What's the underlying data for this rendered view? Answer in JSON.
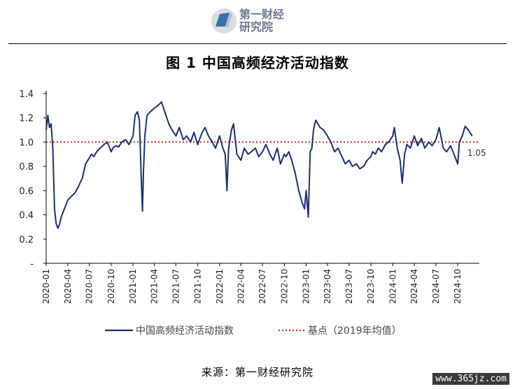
{
  "header": {
    "logo_icon": "book-icon",
    "logo_line1": "第一财经",
    "logo_line2": "研究院"
  },
  "title": "图 1  中国高频经济活动指数",
  "source": "来源：第一财经研究院",
  "watermark": "www.365jz.com",
  "chart_data": {
    "type": "line",
    "xlabel": "",
    "ylabel": "",
    "ylim": [
      0,
      1.4
    ],
    "y_ticks": [
      "-",
      "0.2",
      "0.4",
      "0.6",
      "0.8",
      "1.0",
      "1.2",
      "1.4"
    ],
    "x_ticks": [
      "2020-01",
      "2020-04",
      "2020-07",
      "2020-10",
      "2021-01",
      "2021-04",
      "2021-07",
      "2021-10",
      "2022-01",
      "2022-04",
      "2022-07",
      "2022-10",
      "2023-01",
      "2023-04",
      "2023-07",
      "2023-10",
      "2024-01",
      "2024-04",
      "2024-07",
      "2024-10"
    ],
    "x_range": [
      "2020-01-01",
      "2024-12-31"
    ],
    "last_value_label": "1.05",
    "grid": false,
    "legend_position": "bottom",
    "colors": {
      "series": "#1b2f6e",
      "baseline": "#cc3333"
    },
    "series": [
      {
        "name": "中国高频经济活动指数",
        "x": [
          "2020-01-01",
          "2020-01-08",
          "2020-01-15",
          "2020-01-22",
          "2020-01-29",
          "2020-02-05",
          "2020-02-12",
          "2020-02-19",
          "2020-02-26",
          "2020-03-04",
          "2020-03-18",
          "2020-04-01",
          "2020-04-15",
          "2020-05-01",
          "2020-05-15",
          "2020-06-01",
          "2020-06-15",
          "2020-07-01",
          "2020-07-10",
          "2020-07-20",
          "2020-08-01",
          "2020-08-15",
          "2020-09-01",
          "2020-09-15",
          "2020-10-01",
          "2020-10-08",
          "2020-10-20",
          "2020-11-01",
          "2020-11-15",
          "2020-12-01",
          "2020-12-15",
          "2021-01-01",
          "2021-01-10",
          "2021-01-20",
          "2021-01-28",
          "2021-02-05",
          "2021-02-10",
          "2021-02-14",
          "2021-02-20",
          "2021-03-01",
          "2021-03-15",
          "2021-04-01",
          "2021-04-15",
          "2021-05-01",
          "2021-05-15",
          "2021-06-01",
          "2021-06-15",
          "2021-07-01",
          "2021-07-15",
          "2021-08-01",
          "2021-08-15",
          "2021-09-01",
          "2021-09-15",
          "2021-10-01",
          "2021-10-08",
          "2021-10-20",
          "2021-11-01",
          "2021-11-15",
          "2021-12-01",
          "2021-12-15",
          "2022-01-01",
          "2022-01-15",
          "2022-01-25",
          "2022-02-01",
          "2022-02-08",
          "2022-02-20",
          "2022-03-01",
          "2022-03-15",
          "2022-04-01",
          "2022-04-15",
          "2022-05-01",
          "2022-05-15",
          "2022-06-01",
          "2022-06-15",
          "2022-07-01",
          "2022-07-15",
          "2022-08-01",
          "2022-08-15",
          "2022-09-01",
          "2022-09-15",
          "2022-10-01",
          "2022-10-08",
          "2022-10-20",
          "2022-11-01",
          "2022-11-15",
          "2022-12-01",
          "2022-12-15",
          "2022-12-25",
          "2023-01-01",
          "2023-01-10",
          "2023-01-18",
          "2023-01-25",
          "2023-02-01",
          "2023-02-10",
          "2023-02-20",
          "2023-03-01",
          "2023-03-15",
          "2023-04-01",
          "2023-04-15",
          "2023-05-01",
          "2023-05-15",
          "2023-06-01",
          "2023-06-15",
          "2023-07-01",
          "2023-07-15",
          "2023-08-01",
          "2023-08-15",
          "2023-09-01",
          "2023-09-15",
          "2023-10-01",
          "2023-10-08",
          "2023-10-20",
          "2023-11-01",
          "2023-11-15",
          "2023-12-01",
          "2023-12-15",
          "2024-01-01",
          "2024-01-08",
          "2024-01-20",
          "2024-02-01",
          "2024-02-10",
          "2024-02-20",
          "2024-03-01",
          "2024-03-15",
          "2024-04-01",
          "2024-04-15",
          "2024-05-01",
          "2024-05-15",
          "2024-06-01",
          "2024-06-15",
          "2024-07-01",
          "2024-07-15",
          "2024-08-01",
          "2024-08-15",
          "2024-09-01",
          "2024-09-15",
          "2024-10-01",
          "2024-10-08",
          "2024-10-20",
          "2024-11-01",
          "2024-11-15",
          "2024-12-01"
        ],
        "values": [
          1.1,
          1.22,
          1.12,
          1.15,
          0.95,
          0.45,
          0.33,
          0.29,
          0.32,
          0.38,
          0.45,
          0.52,
          0.55,
          0.58,
          0.63,
          0.7,
          0.82,
          0.87,
          0.9,
          0.88,
          0.92,
          0.95,
          0.98,
          1.0,
          0.92,
          0.95,
          0.97,
          0.96,
          1.0,
          1.02,
          0.98,
          1.05,
          1.22,
          1.25,
          1.18,
          0.7,
          0.43,
          0.75,
          1.05,
          1.22,
          1.25,
          1.28,
          1.3,
          1.33,
          1.25,
          1.15,
          1.1,
          1.05,
          1.12,
          1.02,
          1.05,
          1.0,
          1.08,
          0.98,
          1.02,
          1.08,
          1.12,
          1.05,
          1.0,
          0.95,
          1.05,
          0.95,
          0.9,
          0.6,
          0.95,
          1.1,
          1.15,
          0.9,
          0.85,
          0.95,
          0.9,
          0.92,
          0.95,
          0.88,
          0.92,
          0.98,
          0.9,
          0.85,
          0.95,
          0.82,
          0.9,
          0.88,
          0.92,
          0.85,
          0.75,
          0.6,
          0.5,
          0.45,
          0.6,
          0.38,
          0.92,
          0.95,
          1.1,
          1.18,
          1.15,
          1.12,
          1.1,
          1.05,
          1.0,
          0.92,
          0.95,
          0.88,
          0.82,
          0.85,
          0.8,
          0.82,
          0.78,
          0.8,
          0.85,
          0.88,
          0.92,
          0.9,
          0.95,
          0.92,
          0.98,
          1.0,
          1.05,
          1.12,
          0.95,
          0.85,
          0.66,
          0.9,
          0.98,
          0.95,
          1.05,
          0.97,
          1.03,
          0.95,
          1.0,
          0.97,
          1.02,
          1.12,
          0.95,
          0.92,
          0.97,
          0.9,
          0.82,
          1.0,
          1.05,
          1.13,
          1.1,
          1.05
        ]
      },
      {
        "name": "基点（2019年均值）",
        "x": [
          "2020-01-01",
          "2024-12-31"
        ],
        "values": [
          1.0,
          1.0
        ]
      }
    ]
  }
}
